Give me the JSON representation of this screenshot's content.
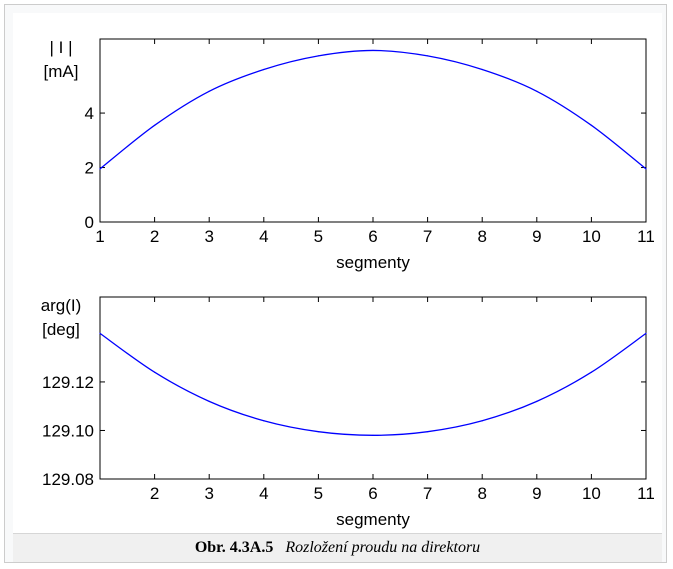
{
  "caption": {
    "label": "Obr. 4.3A.5",
    "text": "Rozložení proudu na direktoru"
  },
  "colors": {
    "line": "#0000ff",
    "axis": "#000000",
    "background": "#ffffff"
  },
  "chart_data": [
    {
      "type": "line",
      "ylabel_line1": "| I |",
      "ylabel_line2": "[mA]",
      "xlabel": "segmenty",
      "xlim": [
        1,
        11
      ],
      "ylim": [
        0,
        6.72
      ],
      "x_ticks": [
        1,
        2,
        3,
        4,
        5,
        6,
        7,
        8,
        9,
        10,
        11
      ],
      "x_tick_labels": [
        "1",
        "2",
        "3",
        "4",
        "5",
        "6",
        "7",
        "8",
        "9",
        "10",
        "11"
      ],
      "y_ticks": [
        0,
        2,
        4
      ],
      "y_tick_labels": [
        "0",
        "2",
        "4"
      ],
      "grid": false,
      "series": [
        {
          "x": [
            1,
            2,
            3,
            4,
            5,
            6,
            7,
            8,
            9,
            10,
            11
          ],
          "values": [
            1.95,
            3.55,
            4.8,
            5.6,
            6.1,
            6.3,
            6.1,
            5.6,
            4.8,
            3.55,
            1.95
          ]
        }
      ]
    },
    {
      "type": "line",
      "ylabel_line1": "arg(I)",
      "ylabel_line2": "[deg]",
      "xlabel": "segmenty",
      "xlim": [
        1,
        11
      ],
      "ylim": [
        129.08,
        129.155
      ],
      "x_ticks": [
        2,
        3,
        4,
        5,
        6,
        7,
        8,
        9,
        10,
        11
      ],
      "x_tick_labels": [
        "2",
        "3",
        "4",
        "5",
        "6",
        "7",
        "8",
        "9",
        "10",
        "11"
      ],
      "y_ticks": [
        129.08,
        129.1,
        129.12
      ],
      "y_tick_labels": [
        "129.08",
        "129.10",
        "129.12"
      ],
      "grid": false,
      "series": [
        {
          "x": [
            1,
            2,
            3,
            4,
            5,
            6,
            7,
            8,
            9,
            10,
            11
          ],
          "values": [
            129.14,
            129.124,
            129.112,
            129.104,
            129.0995,
            129.098,
            129.0995,
            129.104,
            129.112,
            129.124,
            129.14
          ]
        }
      ]
    }
  ]
}
